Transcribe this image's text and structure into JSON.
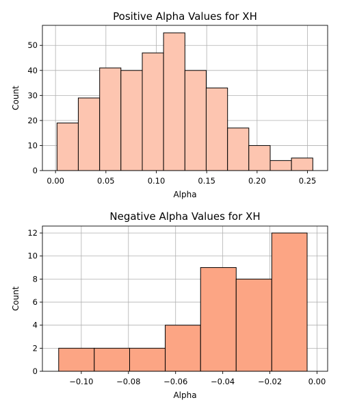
{
  "chart_data": [
    {
      "type": "histogram",
      "title": "Positive Alpha Values for XH",
      "xlabel": "Alpha",
      "ylabel": "Count",
      "xlim": [
        -0.013,
        0.27
      ],
      "ylim": [
        0,
        58
      ],
      "grid": true,
      "bar_color": "#fdc5b0",
      "edge_color": "#000000",
      "xticks": [
        0.0,
        0.05,
        0.1,
        0.15,
        0.2,
        0.25
      ],
      "xtick_labels": [
        "0.00",
        "0.05",
        "0.10",
        "0.15",
        "0.20",
        "0.25"
      ],
      "yticks": [
        0,
        10,
        20,
        30,
        40,
        50
      ],
      "ytick_labels": [
        "0",
        "10",
        "20",
        "30",
        "40",
        "50"
      ],
      "bin_edges": [
        0.0015,
        0.0226,
        0.0438,
        0.0649,
        0.0861,
        0.1072,
        0.1284,
        0.1495,
        0.1707,
        0.1918,
        0.213,
        0.2341,
        0.2553
      ],
      "values": [
        19,
        29,
        41,
        40,
        47,
        55,
        40,
        33,
        17,
        10,
        4,
        5
      ]
    },
    {
      "type": "histogram",
      "title": "Negative Alpha Values for XH",
      "xlabel": "Alpha",
      "ylabel": "Count",
      "xlim": [
        -0.1165,
        0.0045
      ],
      "ylim": [
        0,
        12.6
      ],
      "grid": true,
      "bar_color": "#fca584",
      "edge_color": "#000000",
      "xticks": [
        -0.1,
        -0.08,
        -0.06,
        -0.04,
        -0.02,
        0.0
      ],
      "xtick_labels": [
        "−0.10",
        "−0.08",
        "−0.06",
        "−0.04",
        "−0.02",
        "0.00"
      ],
      "yticks": [
        0,
        2,
        4,
        6,
        8,
        10,
        12
      ],
      "ytick_labels": [
        "0",
        "2",
        "4",
        "6",
        "8",
        "10",
        "12"
      ],
      "bin_edges": [
        -0.1096,
        -0.0945,
        -0.0795,
        -0.0644,
        -0.0494,
        -0.0343,
        -0.0192,
        -0.0042
      ],
      "values": [
        2,
        2,
        2,
        4,
        9,
        8,
        12
      ]
    }
  ]
}
